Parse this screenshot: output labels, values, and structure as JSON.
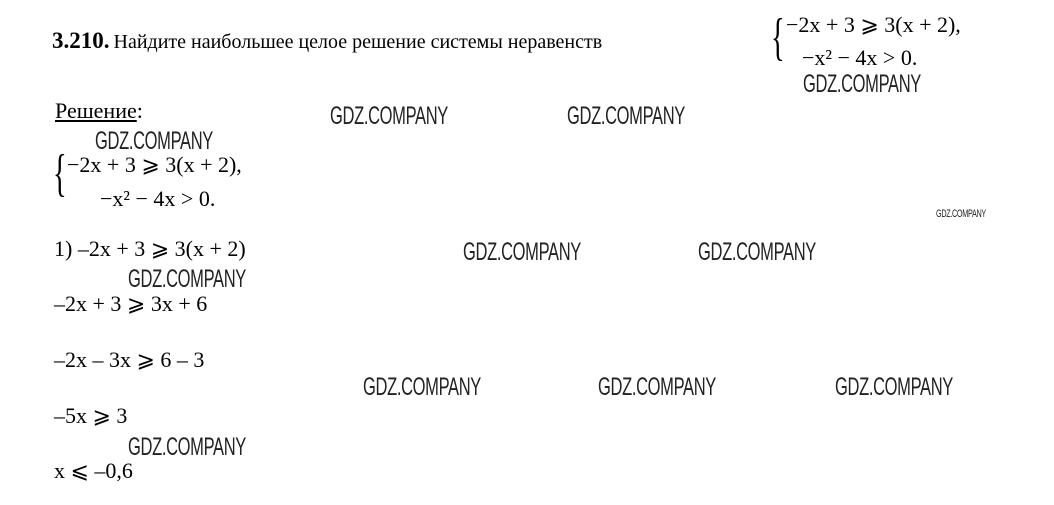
{
  "problem": {
    "number": "3.210.",
    "text": "Найдите наибольшее целое решение системы неравенств",
    "system": [
      "−2x + 3 ⩾ 3(x + 2),",
      "−x² − 4x > 0."
    ]
  },
  "solution": {
    "heading": "Решение",
    "heading_colon": ":",
    "system": [
      "−2x + 3 ⩾ 3(x + 2),",
      "−x² − 4x > 0."
    ],
    "steps": [
      "1) –2x + 3 ⩾ 3(x + 2)",
      "–2x + 3 ⩾ 3x + 6",
      "–2x – 3x ⩾ 6 – 3",
      "–5x ⩾ 3",
      "x ⩽ –0,6"
    ]
  },
  "watermark": "GDZ.COMPANY"
}
